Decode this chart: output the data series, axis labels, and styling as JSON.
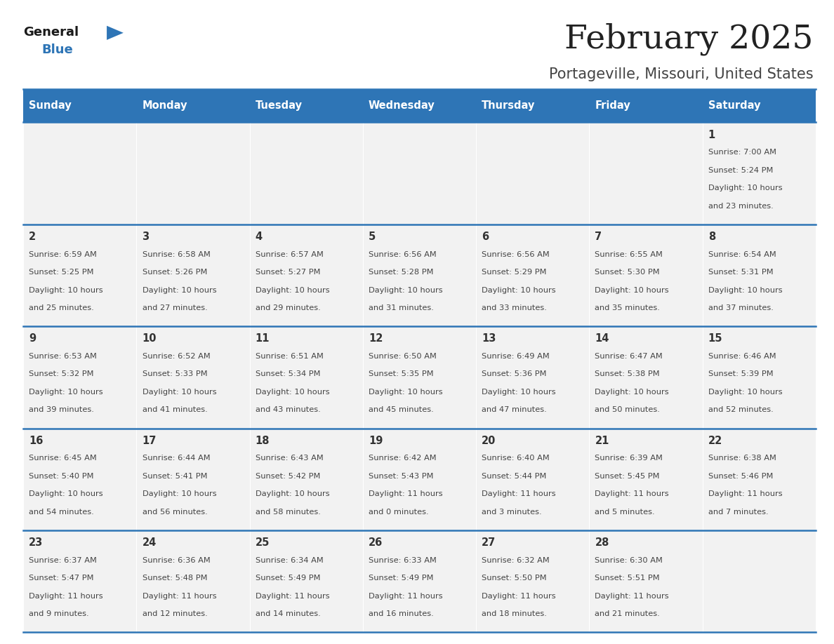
{
  "title": "February 2025",
  "subtitle": "Portageville, Missouri, United States",
  "header_color": "#2E75B6",
  "header_text_color": "#FFFFFF",
  "cell_bg_color": "#F2F2F2",
  "day_headers": [
    "Sunday",
    "Monday",
    "Tuesday",
    "Wednesday",
    "Thursday",
    "Friday",
    "Saturday"
  ],
  "title_color": "#222222",
  "subtitle_color": "#444444",
  "line_color": "#2E75B6",
  "number_color": "#333333",
  "text_color": "#444444",
  "logo_general_color": "#1A1A1A",
  "logo_blue_color": "#2E75B6",
  "logo_triangle_color": "#2E75B6",
  "calendar": [
    [
      null,
      null,
      null,
      null,
      null,
      null,
      {
        "day": "1",
        "sunrise": "7:00 AM",
        "sunset": "5:24 PM",
        "daylight_h": "10 hours",
        "daylight_m": "and 23 minutes."
      }
    ],
    [
      {
        "day": "2",
        "sunrise": "6:59 AM",
        "sunset": "5:25 PM",
        "daylight_h": "10 hours",
        "daylight_m": "and 25 minutes."
      },
      {
        "day": "3",
        "sunrise": "6:58 AM",
        "sunset": "5:26 PM",
        "daylight_h": "10 hours",
        "daylight_m": "and 27 minutes."
      },
      {
        "day": "4",
        "sunrise": "6:57 AM",
        "sunset": "5:27 PM",
        "daylight_h": "10 hours",
        "daylight_m": "and 29 minutes."
      },
      {
        "day": "5",
        "sunrise": "6:56 AM",
        "sunset": "5:28 PM",
        "daylight_h": "10 hours",
        "daylight_m": "and 31 minutes."
      },
      {
        "day": "6",
        "sunrise": "6:56 AM",
        "sunset": "5:29 PM",
        "daylight_h": "10 hours",
        "daylight_m": "and 33 minutes."
      },
      {
        "day": "7",
        "sunrise": "6:55 AM",
        "sunset": "5:30 PM",
        "daylight_h": "10 hours",
        "daylight_m": "and 35 minutes."
      },
      {
        "day": "8",
        "sunrise": "6:54 AM",
        "sunset": "5:31 PM",
        "daylight_h": "10 hours",
        "daylight_m": "and 37 minutes."
      }
    ],
    [
      {
        "day": "9",
        "sunrise": "6:53 AM",
        "sunset": "5:32 PM",
        "daylight_h": "10 hours",
        "daylight_m": "and 39 minutes."
      },
      {
        "day": "10",
        "sunrise": "6:52 AM",
        "sunset": "5:33 PM",
        "daylight_h": "10 hours",
        "daylight_m": "and 41 minutes."
      },
      {
        "day": "11",
        "sunrise": "6:51 AM",
        "sunset": "5:34 PM",
        "daylight_h": "10 hours",
        "daylight_m": "and 43 minutes."
      },
      {
        "day": "12",
        "sunrise": "6:50 AM",
        "sunset": "5:35 PM",
        "daylight_h": "10 hours",
        "daylight_m": "and 45 minutes."
      },
      {
        "day": "13",
        "sunrise": "6:49 AM",
        "sunset": "5:36 PM",
        "daylight_h": "10 hours",
        "daylight_m": "and 47 minutes."
      },
      {
        "day": "14",
        "sunrise": "6:47 AM",
        "sunset": "5:38 PM",
        "daylight_h": "10 hours",
        "daylight_m": "and 50 minutes."
      },
      {
        "day": "15",
        "sunrise": "6:46 AM",
        "sunset": "5:39 PM",
        "daylight_h": "10 hours",
        "daylight_m": "and 52 minutes."
      }
    ],
    [
      {
        "day": "16",
        "sunrise": "6:45 AM",
        "sunset": "5:40 PM",
        "daylight_h": "10 hours",
        "daylight_m": "and 54 minutes."
      },
      {
        "day": "17",
        "sunrise": "6:44 AM",
        "sunset": "5:41 PM",
        "daylight_h": "10 hours",
        "daylight_m": "and 56 minutes."
      },
      {
        "day": "18",
        "sunrise": "6:43 AM",
        "sunset": "5:42 PM",
        "daylight_h": "10 hours",
        "daylight_m": "and 58 minutes."
      },
      {
        "day": "19",
        "sunrise": "6:42 AM",
        "sunset": "5:43 PM",
        "daylight_h": "11 hours",
        "daylight_m": "and 0 minutes."
      },
      {
        "day": "20",
        "sunrise": "6:40 AM",
        "sunset": "5:44 PM",
        "daylight_h": "11 hours",
        "daylight_m": "and 3 minutes."
      },
      {
        "day": "21",
        "sunrise": "6:39 AM",
        "sunset": "5:45 PM",
        "daylight_h": "11 hours",
        "daylight_m": "and 5 minutes."
      },
      {
        "day": "22",
        "sunrise": "6:38 AM",
        "sunset": "5:46 PM",
        "daylight_h": "11 hours",
        "daylight_m": "and 7 minutes."
      }
    ],
    [
      {
        "day": "23",
        "sunrise": "6:37 AM",
        "sunset": "5:47 PM",
        "daylight_h": "11 hours",
        "daylight_m": "and 9 minutes."
      },
      {
        "day": "24",
        "sunrise": "6:36 AM",
        "sunset": "5:48 PM",
        "daylight_h": "11 hours",
        "daylight_m": "and 12 minutes."
      },
      {
        "day": "25",
        "sunrise": "6:34 AM",
        "sunset": "5:49 PM",
        "daylight_h": "11 hours",
        "daylight_m": "and 14 minutes."
      },
      {
        "day": "26",
        "sunrise": "6:33 AM",
        "sunset": "5:49 PM",
        "daylight_h": "11 hours",
        "daylight_m": "and 16 minutes."
      },
      {
        "day": "27",
        "sunrise": "6:32 AM",
        "sunset": "5:50 PM",
        "daylight_h": "11 hours",
        "daylight_m": "and 18 minutes."
      },
      {
        "day": "28",
        "sunrise": "6:30 AM",
        "sunset": "5:51 PM",
        "daylight_h": "11 hours",
        "daylight_m": "and 21 minutes."
      },
      null
    ]
  ]
}
